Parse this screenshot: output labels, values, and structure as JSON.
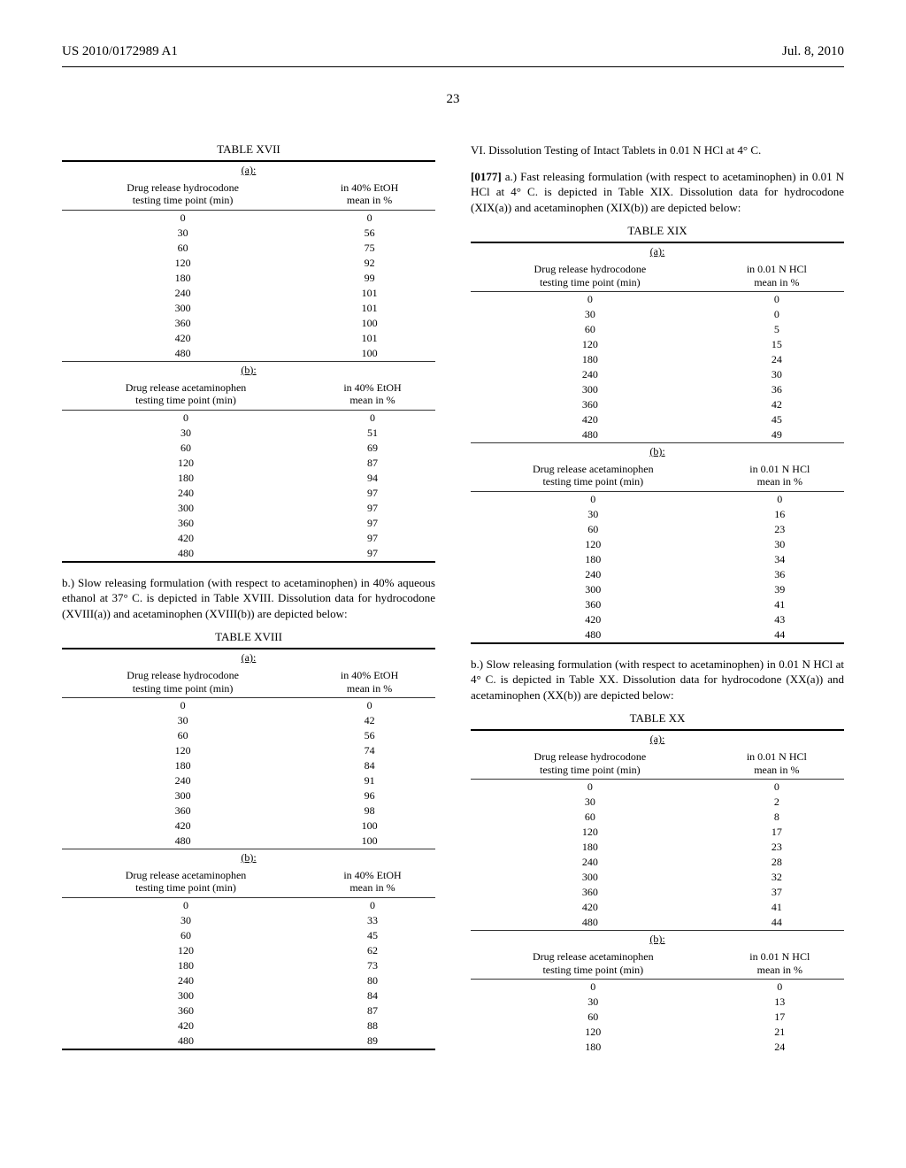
{
  "header": {
    "left": "US 2010/0172989 A1",
    "right": "Jul. 8, 2010"
  },
  "page_number": "23",
  "tables": {
    "XVII": {
      "title": "TABLE XVII",
      "a": {
        "label": "(a):",
        "col1": "Drug release hydrocodone\ntesting time point (min)",
        "col2": "in 40% EtOH\nmean in %",
        "rows": [
          [
            "0",
            "0"
          ],
          [
            "30",
            "56"
          ],
          [
            "60",
            "75"
          ],
          [
            "120",
            "92"
          ],
          [
            "180",
            "99"
          ],
          [
            "240",
            "101"
          ],
          [
            "300",
            "101"
          ],
          [
            "360",
            "100"
          ],
          [
            "420",
            "101"
          ],
          [
            "480",
            "100"
          ]
        ]
      },
      "b": {
        "label": "(b):",
        "col1": "Drug release acetaminophen\ntesting time point (min)",
        "col2": "in 40% EtOH\nmean in %",
        "rows": [
          [
            "0",
            "0"
          ],
          [
            "30",
            "51"
          ],
          [
            "60",
            "69"
          ],
          [
            "120",
            "87"
          ],
          [
            "180",
            "94"
          ],
          [
            "240",
            "97"
          ],
          [
            "300",
            "97"
          ],
          [
            "360",
            "97"
          ],
          [
            "420",
            "97"
          ],
          [
            "480",
            "97"
          ]
        ]
      }
    },
    "XVIII": {
      "title": "TABLE XVIII",
      "a": {
        "label": "(a):",
        "col1": "Drug release hydrocodone\ntesting time point (min)",
        "col2": "in 40% EtOH\nmean in %",
        "rows": [
          [
            "0",
            "0"
          ],
          [
            "30",
            "42"
          ],
          [
            "60",
            "56"
          ],
          [
            "120",
            "74"
          ],
          [
            "180",
            "84"
          ],
          [
            "240",
            "91"
          ],
          [
            "300",
            "96"
          ],
          [
            "360",
            "98"
          ],
          [
            "420",
            "100"
          ],
          [
            "480",
            "100"
          ]
        ]
      },
      "b": {
        "label": "(b):",
        "col1": "Drug release acetaminophen\ntesting time point (min)",
        "col2": "in 40% EtOH\nmean in %",
        "rows": [
          [
            "0",
            "0"
          ],
          [
            "30",
            "33"
          ],
          [
            "60",
            "45"
          ],
          [
            "120",
            "62"
          ],
          [
            "180",
            "73"
          ],
          [
            "240",
            "80"
          ],
          [
            "300",
            "84"
          ],
          [
            "360",
            "87"
          ],
          [
            "420",
            "88"
          ],
          [
            "480",
            "89"
          ]
        ]
      }
    },
    "XIX": {
      "title": "TABLE XIX",
      "a": {
        "label": "(a):",
        "col1": "Drug release hydrocodone\ntesting time point (min)",
        "col2": "in 0.01 N HCl\nmean in %",
        "rows": [
          [
            "0",
            "0"
          ],
          [
            "30",
            "0"
          ],
          [
            "60",
            "5"
          ],
          [
            "120",
            "15"
          ],
          [
            "180",
            "24"
          ],
          [
            "240",
            "30"
          ],
          [
            "300",
            "36"
          ],
          [
            "360",
            "42"
          ],
          [
            "420",
            "45"
          ],
          [
            "480",
            "49"
          ]
        ]
      },
      "b": {
        "label": "(b):",
        "col1": "Drug release acetaminophen\ntesting time point (min)",
        "col2": "in 0.01 N HCl\nmean in %",
        "rows": [
          [
            "0",
            "0"
          ],
          [
            "30",
            "16"
          ],
          [
            "60",
            "23"
          ],
          [
            "120",
            "30"
          ],
          [
            "180",
            "34"
          ],
          [
            "240",
            "36"
          ],
          [
            "300",
            "39"
          ],
          [
            "360",
            "41"
          ],
          [
            "420",
            "43"
          ],
          [
            "480",
            "44"
          ]
        ]
      }
    },
    "XX": {
      "title": "TABLE XX",
      "a": {
        "label": "(a):",
        "col1": "Drug release hydrocodone\ntesting time point (min)",
        "col2": "in 0.01 N HCl\nmean in %",
        "rows": [
          [
            "0",
            "0"
          ],
          [
            "30",
            "2"
          ],
          [
            "60",
            "8"
          ],
          [
            "120",
            "17"
          ],
          [
            "180",
            "23"
          ],
          [
            "240",
            "28"
          ],
          [
            "300",
            "32"
          ],
          [
            "360",
            "37"
          ],
          [
            "420",
            "41"
          ],
          [
            "480",
            "44"
          ]
        ]
      },
      "b": {
        "label": "(b):",
        "col1": "Drug release acetaminophen\ntesting time point (min)",
        "col2": "in 0.01 N HCl\nmean in %",
        "rows": [
          [
            "0",
            "0"
          ],
          [
            "30",
            "13"
          ],
          [
            "60",
            "17"
          ],
          [
            "120",
            "21"
          ],
          [
            "180",
            "24"
          ]
        ]
      }
    }
  },
  "paragraphs": {
    "p1": "b.) Slow releasing formulation (with respect to acetaminophen) in 40% aqueous ethanol at 37° C. is depicted in Table XVIII. Dissolution data for hydrocodone (XVIII(a)) and acetaminophen (XVIII(b)) are depicted below:",
    "section_vi": "VI. Dissolution Testing of Intact Tablets in 0.01 N HCl at 4° C.",
    "p0177_num": "[0177]",
    "p0177": " a.) Fast releasing formulation (with respect to acetaminophen) in 0.01 N HCl at 4° C. is depicted in Table XIX. Dissolution data for hydrocodone (XIX(a)) and acetaminophen (XIX(b)) are depicted below:",
    "p2": "b.) Slow releasing formulation (with respect to acetaminophen) in 0.01 N HCl at 4° C. is depicted in Table XX. Dissolution data for hydrocodone (XX(a)) and acetaminophen (XX(b)) are depicted below:"
  }
}
